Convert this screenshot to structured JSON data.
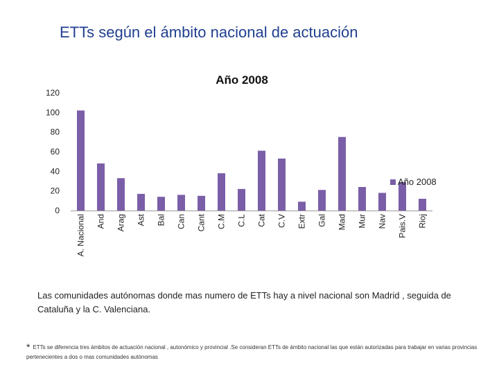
{
  "slide": {
    "title": "ETTs según el ámbito nacional de actuación",
    "caption": "Las comunidades autónomas donde mas numero de ETTs hay a nivel nacional son Madrid , seguida de Cataluña y la C. Valenciana.",
    "footnote_marker": "*",
    "footnote": "ETTs se diferencia tres ámbitos de actuación nacional , autonómico y provincial .Se consideran ETTs de ámbito nacional las que están autorizadas para trabajar en varias provincias pertenecientes a dos o mas comunidades autónomas"
  },
  "chart_data": {
    "type": "bar",
    "title": "Año 2008",
    "categories": [
      "A. Nacional",
      "And",
      "Arag",
      "Ast",
      "Bal",
      "Can",
      "Cant",
      "C.M",
      "C.L",
      "Cat",
      "C.V",
      "Extr",
      "Gal",
      "Mad",
      "Mur",
      "Nav",
      "Pais.V",
      "Rioj"
    ],
    "series": [
      {
        "name": "Año 2008",
        "values": [
          102,
          48,
          33,
          17,
          14,
          16,
          15,
          38,
          22,
          61,
          53,
          9,
          21,
          75,
          24,
          18,
          29,
          12
        ]
      }
    ],
    "yticks": [
      "0",
      "20",
      "40",
      "60",
      "80",
      "100",
      "120"
    ],
    "ylim": [
      0,
      120
    ],
    "grid": false,
    "legend_position": "right",
    "bar_color": "#7b5ea8"
  }
}
